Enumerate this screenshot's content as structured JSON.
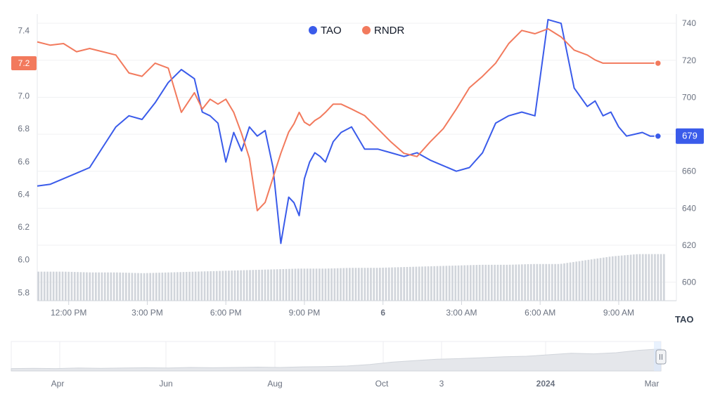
{
  "legend": [
    {
      "name": "TAO",
      "color": "#3a5bea"
    },
    {
      "name": "RNDR",
      "color": "#f27a5d"
    }
  ],
  "axis_title_right": "TAO",
  "current_badges": {
    "left": {
      "value": "7.2",
      "color": "#f27a5d"
    },
    "right": {
      "value": "679",
      "color": "#3a5bea"
    }
  },
  "navigator_labels": [
    "Apr",
    "Jun",
    "Aug",
    "Oct",
    "3",
    "2024",
    "Mar"
  ],
  "navigator_handle_icon": "pause-icon",
  "chart_data": {
    "type": "line",
    "x_tick_labels": [
      "12:00 PM",
      "3:00 PM",
      "6:00 PM",
      "9:00 PM",
      "6",
      "3:00 AM",
      "6:00 AM",
      "9:00 AM"
    ],
    "y_left": {
      "ticks": [
        5.8,
        6.0,
        6.2,
        6.4,
        6.6,
        6.8,
        7.0,
        7.2,
        7.4
      ],
      "range": [
        5.75,
        7.5
      ]
    },
    "y_right": {
      "ticks": [
        600,
        620,
        640,
        660,
        680,
        700,
        720,
        740
      ],
      "range": [
        590,
        745
      ]
    },
    "x_range": [
      0,
      24
    ],
    "x_tick_positions": [
      1.2,
      4.2,
      7.2,
      10.2,
      13.2,
      16.2,
      19.2,
      22.2
    ],
    "series": [
      {
        "name": "TAO",
        "axis": "right",
        "color": "#3a5bea",
        "x": [
          0,
          0.5,
          1,
          1.5,
          2,
          2.5,
          3,
          3.5,
          4,
          4.5,
          5,
          5.5,
          6,
          6.3,
          6.6,
          6.9,
          7.2,
          7.5,
          7.8,
          8.1,
          8.4,
          8.7,
          9,
          9.3,
          9.6,
          9.8,
          10,
          10.2,
          10.4,
          10.6,
          10.8,
          11,
          11.3,
          11.6,
          12,
          12.5,
          13,
          13.5,
          14,
          14.5,
          15,
          15.5,
          16,
          16.5,
          17,
          17.5,
          18,
          18.5,
          19,
          19.5,
          20,
          20.5,
          21,
          21.3,
          21.6,
          21.9,
          22.2,
          22.5,
          22.8,
          23.1,
          23.4,
          23.7
        ],
        "values": [
          652,
          653,
          656,
          659,
          662,
          673,
          684,
          690,
          688,
          697,
          708,
          715,
          710,
          692,
          690,
          686,
          665,
          681,
          671,
          684,
          679,
          682,
          662,
          621,
          646,
          643,
          636,
          656,
          665,
          670,
          668,
          665,
          676,
          681,
          684,
          672,
          672,
          670,
          668,
          670,
          666,
          663,
          660,
          662,
          670,
          686,
          690,
          692,
          690,
          742,
          740,
          705,
          695,
          698,
          690,
          692,
          684,
          679,
          680,
          681,
          679,
          679
        ]
      },
      {
        "name": "RNDR",
        "axis": "left",
        "color": "#f27a5d",
        "x": [
          0,
          0.5,
          1,
          1.5,
          2,
          2.5,
          3,
          3.5,
          4,
          4.5,
          5,
          5.5,
          6,
          6.3,
          6.6,
          6.9,
          7.2,
          7.5,
          7.8,
          8.1,
          8.4,
          8.7,
          9,
          9.3,
          9.6,
          9.8,
          10,
          10.2,
          10.4,
          10.6,
          10.8,
          11,
          11.3,
          11.6,
          12,
          12.5,
          13,
          13.5,
          14,
          14.5,
          15,
          15.5,
          16,
          16.5,
          17,
          17.5,
          18,
          18.5,
          19,
          19.5,
          20,
          20.5,
          21,
          21.3,
          21.6,
          21.9,
          22.2,
          22.5,
          22.8,
          23.1,
          23.4,
          23.7
        ],
        "values": [
          7.33,
          7.31,
          7.32,
          7.27,
          7.29,
          7.27,
          7.25,
          7.14,
          7.12,
          7.2,
          7.17,
          6.9,
          7.02,
          6.92,
          6.98,
          6.95,
          6.98,
          6.9,
          6.77,
          6.62,
          6.3,
          6.35,
          6.5,
          6.65,
          6.78,
          6.83,
          6.9,
          6.84,
          6.82,
          6.85,
          6.87,
          6.9,
          6.95,
          6.95,
          6.92,
          6.88,
          6.8,
          6.72,
          6.65,
          6.63,
          6.72,
          6.8,
          6.92,
          7.05,
          7.12,
          7.2,
          7.32,
          7.4,
          7.38,
          7.41,
          7.36,
          7.28,
          7.25,
          7.22,
          7.2,
          7.2,
          7.2,
          7.2,
          7.2,
          7.2,
          7.2,
          7.2
        ]
      }
    ],
    "volume": {
      "bars": 208,
      "values_relative": [
        0.38,
        0.38,
        0.37,
        0.37,
        0.36,
        0.37,
        0.38,
        0.39,
        0.4,
        0.41,
        0.42,
        0.42,
        0.43,
        0.43,
        0.44,
        0.45,
        0.46,
        0.47,
        0.47,
        0.48,
        0.48,
        0.53,
        0.58,
        0.61,
        0.61
      ],
      "color": "#d1d5db"
    },
    "navigator": {
      "values_relative": [
        0.08,
        0.09,
        0.08,
        0.1,
        0.09,
        0.1,
        0.11,
        0.1,
        0.12,
        0.11,
        0.12,
        0.13,
        0.12,
        0.14,
        0.15,
        0.17,
        0.22,
        0.3,
        0.35,
        0.4,
        0.42,
        0.45,
        0.48,
        0.5,
        0.55,
        0.6,
        0.58,
        0.62,
        0.7,
        0.75
      ],
      "fill": "#e5e7eb"
    },
    "xlabel": "",
    "ylabel": ""
  }
}
